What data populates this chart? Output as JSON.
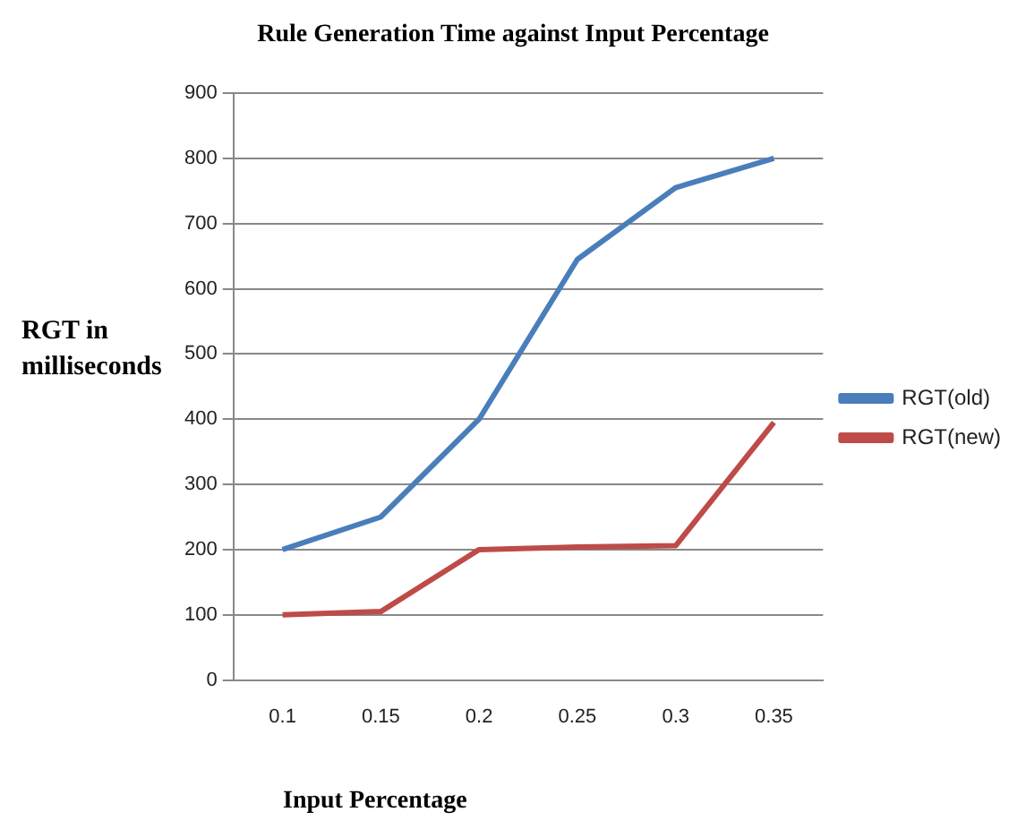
{
  "chart_data": {
    "type": "line",
    "title": "Rule Generation Time against Input Percentage",
    "xlabel": "Input Percentage",
    "ylabel": "RGT in milliseconds",
    "categories": [
      "0.1",
      "0.15",
      "0.2",
      "0.25",
      "0.3",
      "0.35"
    ],
    "series": [
      {
        "name": "RGT(old)",
        "color": "#4a7ebb",
        "values": [
          200,
          250,
          400,
          645,
          755,
          800
        ]
      },
      {
        "name": "RGT(new)",
        "color": "#be4b48",
        "values": [
          100,
          105,
          200,
          204,
          206,
          395
        ]
      }
    ],
    "ylim": [
      0,
      900
    ],
    "yticks": [
      0,
      100,
      200,
      300,
      400,
      500,
      600,
      700,
      800,
      900
    ],
    "grid": "y",
    "legend": "right",
    "marker": "none"
  }
}
